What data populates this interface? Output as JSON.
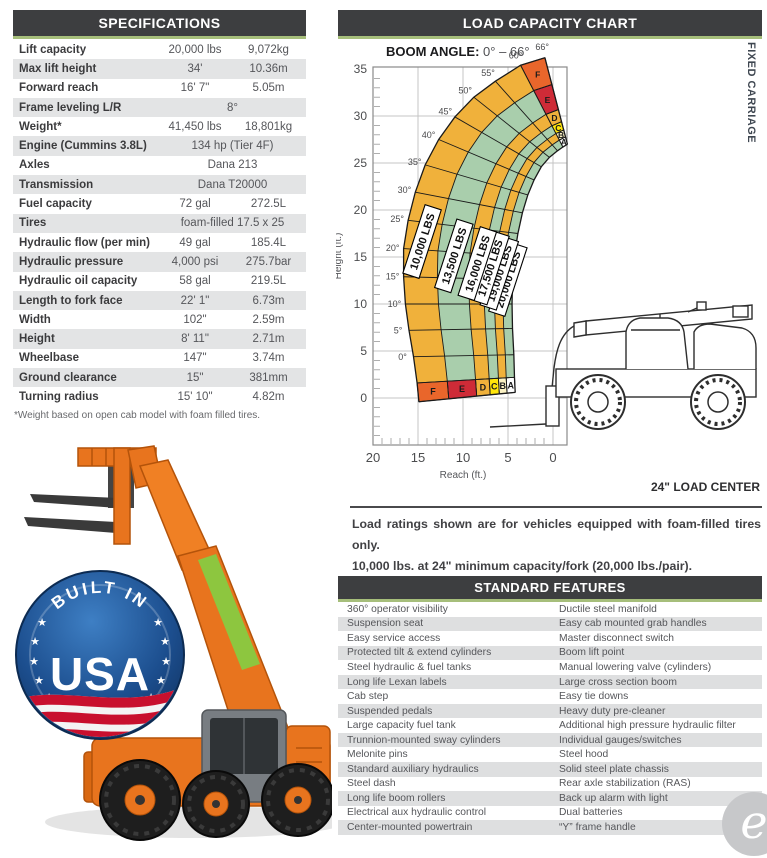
{
  "specifications": {
    "title": "SPECIFICATIONS",
    "rows": [
      {
        "label": "Lift capacity",
        "imperial": "20,000 lbs",
        "metric": "9,072kg"
      },
      {
        "label": "Max lift height",
        "imperial": "34'",
        "metric": "10.36m"
      },
      {
        "label": "Forward reach",
        "imperial": "16' 7\"",
        "metric": "5.05m"
      },
      {
        "label": "Frame leveling L/R",
        "value": "8°"
      },
      {
        "label": "Weight*",
        "imperial": "41,450 lbs",
        "metric": "18,801kg"
      },
      {
        "label": "Engine (Cummins 3.8L)",
        "value": "134 hp (Tier 4F)"
      },
      {
        "label": "Axles",
        "value": "Dana 213"
      },
      {
        "label": "Transmission",
        "value": "Dana T20000"
      },
      {
        "label": "Fuel capacity",
        "imperial": "72 gal",
        "metric": "272.5L"
      },
      {
        "label": "Tires",
        "value": "foam-filled 17.5 x 25"
      },
      {
        "label": "Hydraulic flow (per min)",
        "imperial": "49 gal",
        "metric": "185.4L"
      },
      {
        "label": "Hydraulic pressure",
        "imperial": "4,000 psi",
        "metric": "275.7bar"
      },
      {
        "label": "Hydraulic oil capacity",
        "imperial": "58 gal",
        "metric": "219.5L"
      },
      {
        "label": "Length to fork face",
        "imperial": "22' 1\"",
        "metric": "6.73m"
      },
      {
        "label": "Width",
        "imperial": "102\"",
        "metric": "2.59m"
      },
      {
        "label": "Height",
        "imperial": "8' 11\"",
        "metric": "2.71m"
      },
      {
        "label": "Wheelbase",
        "imperial": "147\"",
        "metric": "3.74m"
      },
      {
        "label": "Ground clearance",
        "imperial": "15\"",
        "metric": "381mm"
      },
      {
        "label": "Turning radius",
        "imperial": "15' 10\"",
        "metric": "4.82m"
      }
    ],
    "footnote": "*Weight based on open cab model with foam filled tires."
  },
  "load_capacity": {
    "title": "LOAD CAPACITY CHART",
    "boom_angle_label": "BOOM ANGLE:",
    "boom_angle_value": "0° – 66°",
    "side_label": "FIXED CARRIAGE",
    "load_center_note": "24\" LOAD CENTER",
    "ratings_note_line1": "Load ratings shown are for vehicles equipped with foam-filled tires only.",
    "ratings_note_line2": "10,000 lbs. at 24\" minimum capacity/fork (20,000 lbs./pair)."
  },
  "chart_data": {
    "type": "area",
    "title": "LOAD CAPACITY CHART",
    "subtitle": "BOOM ANGLE: 0° – 66°",
    "xlabel": "Reach (ft.)",
    "ylabel": "Height (ft.)",
    "x_ticks": [
      20,
      15,
      10,
      5,
      0
    ],
    "y_ticks": [
      0,
      5,
      10,
      15,
      20,
      25,
      30,
      35
    ],
    "x_axis_reversed": true,
    "boom_angles_deg": [
      0,
      5,
      10,
      15,
      20,
      25,
      30,
      35,
      40,
      45,
      50,
      55,
      60,
      66
    ],
    "zones": [
      {
        "zone": "A",
        "capacity": "20,000 LBS",
        "cap_color": "#FFFFFF"
      },
      {
        "zone": "B",
        "capacity": "19,000 LBS",
        "cap_color": "#FBF2C4"
      },
      {
        "zone": "C",
        "capacity": "17,500 LBS",
        "cap_color": "#FFE50A"
      },
      {
        "zone": "D",
        "capacity": "16,000 LBS",
        "cap_color": "#F0B13B"
      },
      {
        "zone": "E",
        "capacity": "13,500 LBS",
        "cap_color": "#CE2B37"
      },
      {
        "zone": "F",
        "capacity": "10,000 LBS",
        "cap_color": "#E9662B"
      }
    ],
    "band_colors": {
      "gold": "#F0B13B",
      "green": "#A9CEAC"
    },
    "legend_position": "none",
    "grid": true
  },
  "standard_features": {
    "title": "STANDARD FEATURES",
    "left": [
      "360° operator visibility",
      "Suspension seat",
      "Easy service access",
      "Protected tilt & extend cylinders",
      "Steel hydraulic & fuel tanks",
      "Long life Lexan labels",
      "Cab step",
      "Suspended pedals",
      "Large capacity fuel tank",
      "Trunnion-mounted sway cylinders",
      "Melonite pins",
      "Standard auxiliary hydraulics",
      "Steel dash",
      "Long life boom rollers",
      "Electrical aux hydraulic control",
      "Center-mounted powertrain"
    ],
    "right": [
      "Ductile steel manifold",
      "Easy cab mounted grab handles",
      "Master disconnect switch",
      "Boom lift point",
      "Manual lowering valve (cylinders)",
      "Large cross section boom",
      "Easy tie downs",
      "Heavy duty pre-cleaner",
      "Additional high pressure hydraulic filter",
      "Individual gauges/switches",
      "Steel hood",
      "Solid steel plate chassis",
      "Rear axle stabilization (RAS)",
      "Back up alarm with light",
      "Dual batteries",
      "“Y” frame handle"
    ]
  },
  "badge": {
    "arc_text": "BUILT IN",
    "main_text": "USA"
  },
  "watermark": {
    "letter": "e"
  }
}
